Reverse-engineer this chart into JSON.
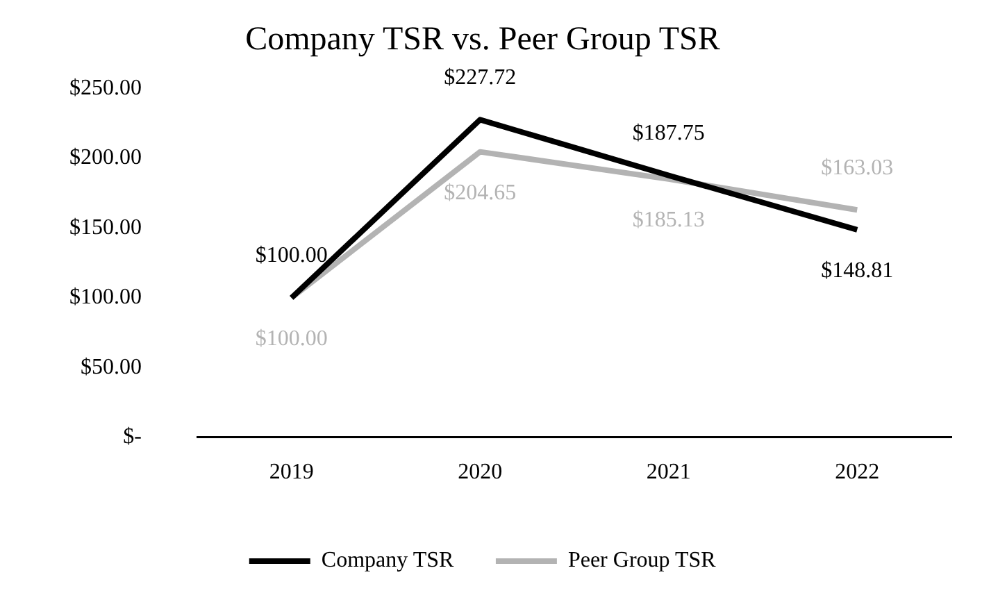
{
  "chart_data": {
    "type": "line",
    "title": "Company TSR vs. Peer Group TSR",
    "categories": [
      "2019",
      "2020",
      "2021",
      "2022"
    ],
    "series": [
      {
        "name": "Company TSR",
        "color": "#000000",
        "values": [
          100.0,
          227.72,
          187.75,
          148.81
        ],
        "value_labels": [
          "$100.00",
          "$227.72",
          "$187.75",
          "$148.81"
        ]
      },
      {
        "name": "Peer Group TSR",
        "color": "#b3b3b3",
        "values": [
          100.0,
          204.65,
          185.13,
          163.03
        ],
        "value_labels": [
          "$100.00",
          "$204.65",
          "$185.13",
          "$163.03"
        ]
      }
    ],
    "ylim": [
      0,
      250
    ],
    "yticks": [
      {
        "value": 0,
        "label": "$-"
      },
      {
        "value": 50,
        "label": "$50.00"
      },
      {
        "value": 100,
        "label": "$100.00"
      },
      {
        "value": 150,
        "label": "$150.00"
      },
      {
        "value": 200,
        "label": "$200.00"
      },
      {
        "value": 250,
        "label": "$250.00"
      }
    ],
    "grid": false,
    "legend": "bottom",
    "marker": "none",
    "line_style": "solid"
  }
}
